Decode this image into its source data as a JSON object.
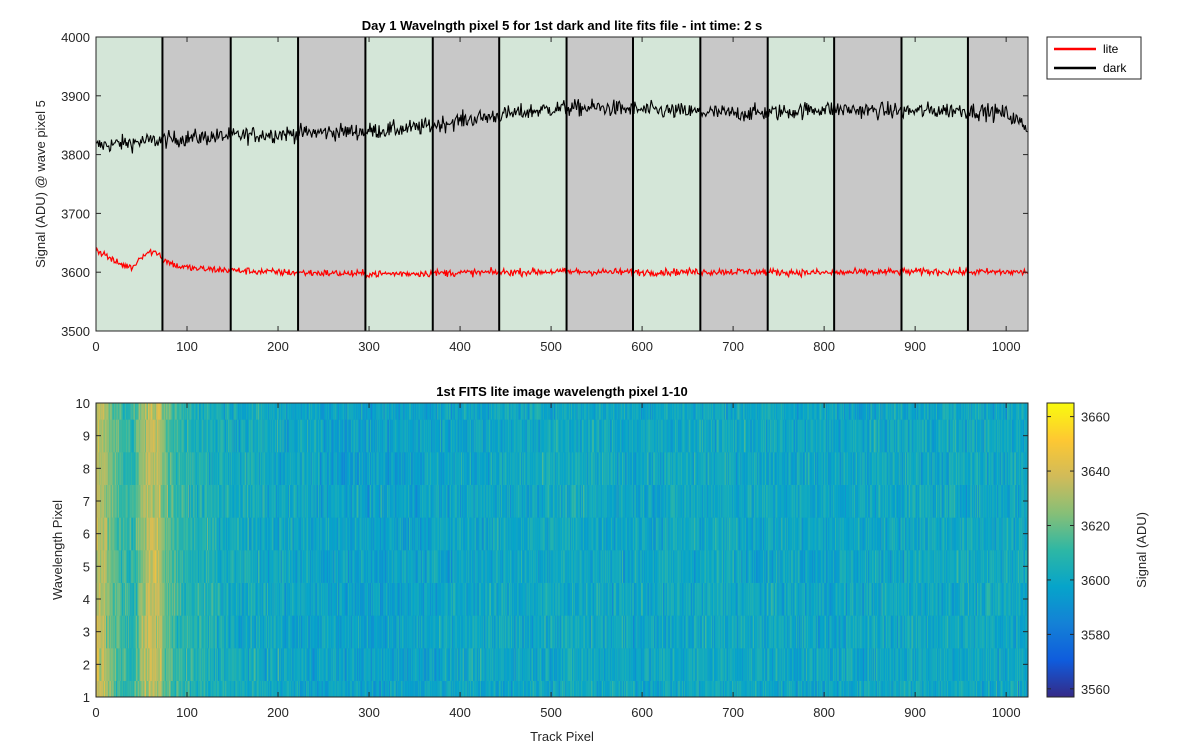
{
  "chart_data": [
    {
      "type": "line",
      "title": "Day 1 Wavelngth pixel 5 for 1st dark and lite fits file - int time: 2 s",
      "xlabel": "",
      "ylabel": "Signal (ADU) @ wave pixel 5",
      "xlim": [
        0,
        1024
      ],
      "ylim": [
        3500,
        4000
      ],
      "xticks": [
        0,
        100,
        200,
        300,
        400,
        500,
        600,
        700,
        800,
        900,
        1000
      ],
      "yticks": [
        3500,
        3600,
        3700,
        3800,
        3900,
        4000
      ],
      "grid": false,
      "legend_position": "outside-top-right",
      "band_boundaries": [
        0,
        73,
        148,
        222,
        296,
        370,
        443,
        517,
        590,
        664,
        738,
        811,
        885,
        958,
        1024
      ],
      "band_colors": [
        "#d4e6d8",
        "#c8c8c8"
      ],
      "series": [
        {
          "name": "lite",
          "color": "#ff0000",
          "profile_x": [
            0,
            10,
            20,
            30,
            40,
            50,
            60,
            70,
            73,
            90,
            110,
            150,
            200,
            300,
            400,
            500,
            600,
            700,
            800,
            900,
            1024
          ],
          "profile_y": [
            3638,
            3630,
            3618,
            3612,
            3608,
            3628,
            3635,
            3632,
            3622,
            3610,
            3606,
            3603,
            3600,
            3597,
            3599,
            3601,
            3600,
            3601,
            3599,
            3601,
            3600
          ],
          "noise_amplitude": 6
        },
        {
          "name": "dark",
          "color": "#000000",
          "profile_x": [
            0,
            50,
            100,
            150,
            200,
            250,
            300,
            350,
            400,
            450,
            500,
            550,
            600,
            650,
            700,
            750,
            800,
            850,
            900,
            950,
            1000,
            1024
          ],
          "profile_y": [
            3815,
            3822,
            3828,
            3832,
            3835,
            3838,
            3840,
            3845,
            3858,
            3868,
            3878,
            3880,
            3876,
            3873,
            3870,
            3872,
            3878,
            3875,
            3874,
            3876,
            3870,
            3845
          ],
          "noise_amplitude": 14
        }
      ]
    },
    {
      "type": "heatmap",
      "title": "1st FITS lite image wavelength pixel 1-10",
      "xlabel": "Track Pixel",
      "ylabel": "Wavelength Pixel",
      "xlim": [
        0,
        1024
      ],
      "ylim": [
        1,
        10
      ],
      "xticks": [
        0,
        100,
        200,
        300,
        400,
        500,
        600,
        700,
        800,
        900,
        1000
      ],
      "yticks": [
        1,
        2,
        3,
        4,
        5,
        6,
        7,
        8,
        9,
        10
      ],
      "rows": 10,
      "columns": 1024,
      "colorbar": {
        "label": "Signal (ADU)",
        "range": [
          3557,
          3665
        ],
        "ticks": [
          3560,
          3580,
          3600,
          3620,
          3640,
          3660
        ],
        "colormap": "parula"
      }
    }
  ]
}
